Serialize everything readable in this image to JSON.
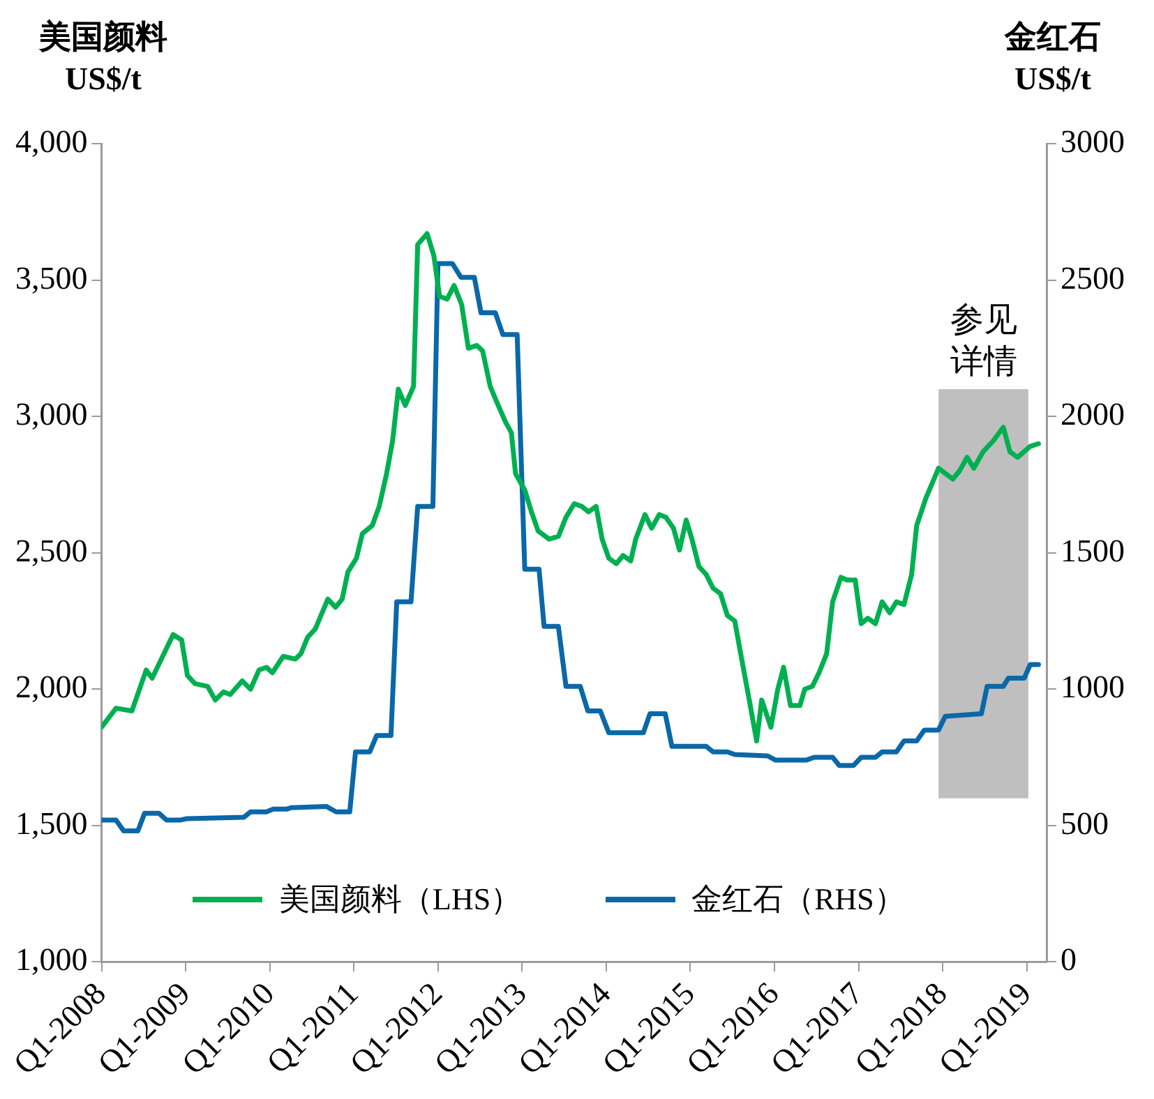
{
  "chart_data": {
    "type": "line",
    "ylabel": "美国颜料\nUS$/t",
    "y2label": "金红石\nUS$/t",
    "xlim": [
      "2008-01-01",
      "2019-03-28"
    ],
    "xticks": [
      {
        "value": "2008-01",
        "label": "Q1-2008"
      },
      {
        "value": "2009-01",
        "label": "Q1-2009"
      },
      {
        "value": "2010-01",
        "label": "Q1-2010"
      },
      {
        "value": "2011-01",
        "label": "Q1-2011"
      },
      {
        "value": "2012-01",
        "label": "Q1-2012"
      },
      {
        "value": "2013-01",
        "label": "Q1-2013"
      },
      {
        "value": "2014-01",
        "label": "Q1-2014"
      },
      {
        "value": "2015-01",
        "label": "Q1-2015"
      },
      {
        "value": "2016-01",
        "label": "Q1-2016"
      },
      {
        "value": "2017-01",
        "label": "Q1-2017"
      },
      {
        "value": "2018-01",
        "label": "Q1-2018"
      },
      {
        "value": "2019-01",
        "label": "Q1-2019"
      }
    ],
    "ylim": [
      1000,
      4000
    ],
    "yticks": [
      {
        "value": 1000,
        "label": "1,000"
      },
      {
        "value": 1500,
        "label": "1,500"
      },
      {
        "value": 2000,
        "label": "2,000"
      },
      {
        "value": 2500,
        "label": "2,500"
      },
      {
        "value": 3000,
        "label": "3,000"
      },
      {
        "value": 3500,
        "label": "3,500"
      },
      {
        "value": 4000,
        "label": "4,000"
      }
    ],
    "y2lim": [
      0,
      3000
    ],
    "y2ticks": [
      0,
      500,
      1000,
      1500,
      2000,
      2500,
      3000
    ],
    "grid": false,
    "legend": "bottom",
    "marker": "none",
    "bands": [
      {
        "axis": "x",
        "from": "2017-12-14",
        "to": "2019-01-08",
        "label": "参见详情",
        "color": "#bfbfbf"
      }
    ],
    "series": [
      {
        "name": "美国颜料（LHS）",
        "color": "#00b050",
        "x": [
          "2008-01-01",
          "2008-03-04",
          "2008-05-12",
          "2008-07-13",
          "2008-08-08",
          "2008-11-07",
          "2008-12-14",
          "2009-01-08",
          "2009-02-10",
          "2009-04-06",
          "2009-05-09",
          "2009-06-14",
          "2009-07-13",
          "2009-09-03",
          "2009-10-09",
          "2009-11-15",
          "2009-12-17",
          "2010-01-12",
          "2010-02-28",
          "2010-04-21",
          "2010-05-16",
          "2010-06-14",
          "2010-07-17",
          "2010-09-10",
          "2010-10-13",
          "2010-11-11",
          "2010-12-06",
          "2011-01-12",
          "2011-02-07",
          "2011-03-22",
          "2011-04-21",
          "2011-05-23",
          "2011-06-18",
          "2011-07-13",
          "2011-08-12",
          "2011-09-17",
          "2011-10-05",
          "2011-11-15",
          "2011-12-14",
          "2012-01-08",
          "2012-02-10",
          "2012-03-11",
          "2012-04-13",
          "2012-05-12",
          "2012-06-18",
          "2012-07-13",
          "2012-08-15",
          "2012-09-14",
          "2012-10-20",
          "2012-11-15",
          "2012-12-03",
          "2013-01-12",
          "2013-02-10",
          "2013-03-11",
          "2013-04-28",
          "2013-06-07",
          "2013-07-10",
          "2013-08-15",
          "2013-09-17",
          "2013-10-16",
          "2013-11-18",
          "2013-12-14",
          "2014-01-12",
          "2014-02-14",
          "2014-03-15",
          "2014-04-17",
          "2014-05-09",
          "2014-06-18",
          "2014-07-17",
          "2014-08-19",
          "2014-09-17",
          "2014-10-20",
          "2014-11-15",
          "2014-12-14",
          "2015-01-08",
          "2015-02-07",
          "2015-03-11",
          "2015-04-10",
          "2015-05-12",
          "2015-06-11",
          "2015-07-13",
          "2015-08-12",
          "2015-09-14",
          "2015-10-16",
          "2015-11-07",
          "2015-12-17",
          "2016-01-16",
          "2016-02-10",
          "2016-03-11",
          "2016-04-21",
          "2016-05-12",
          "2016-06-14",
          "2016-07-13",
          "2016-08-15",
          "2016-09-10",
          "2016-10-16",
          "2016-11-11",
          "2016-12-17",
          "2017-01-12",
          "2017-02-10",
          "2017-03-15",
          "2017-04-13",
          "2017-05-16",
          "2017-06-14",
          "2017-07-17",
          "2017-08-19",
          "2017-09-10",
          "2017-10-20",
          "2017-12-14",
          "2018-02-14",
          "2018-03-15",
          "2018-04-17",
          "2018-05-16",
          "2018-06-25",
          "2018-08-08",
          "2018-09-21",
          "2018-10-20",
          "2018-11-22",
          "2019-01-16",
          "2019-02-21"
        ],
        "values": [
          1860,
          1930,
          1920,
          2070,
          2040,
          2200,
          2180,
          2050,
          2020,
          2010,
          1960,
          1990,
          1980,
          2030,
          2000,
          2070,
          2080,
          2060,
          2120,
          2110,
          2130,
          2190,
          2220,
          2330,
          2300,
          2330,
          2430,
          2480,
          2570,
          2600,
          2670,
          2790,
          2910,
          3100,
          3040,
          3110,
          3630,
          3670,
          3590,
          3440,
          3430,
          3480,
          3410,
          3250,
          3260,
          3240,
          3110,
          3050,
          2980,
          2940,
          2790,
          2730,
          2650,
          2580,
          2550,
          2560,
          2630,
          2680,
          2670,
          2650,
          2670,
          2550,
          2480,
          2460,
          2490,
          2470,
          2550,
          2640,
          2590,
          2640,
          2630,
          2590,
          2510,
          2620,
          2550,
          2450,
          2420,
          2370,
          2350,
          2270,
          2250,
          2110,
          1960,
          1810,
          1960,
          1860,
          2000,
          2080,
          1940,
          1940,
          2000,
          2010,
          2060,
          2130,
          2320,
          2410,
          2400,
          2400,
          2240,
          2260,
          2240,
          2320,
          2280,
          2320,
          2310,
          2420,
          2600,
          2700,
          2810,
          2770,
          2800,
          2850,
          2810,
          2870,
          2910,
          2960,
          2870,
          2850,
          2890,
          2900
        ]
      },
      {
        "name": "金红石（RHS）",
        "color": "#0a68a8",
        "axis": "y2",
        "x": [
          "2008-01-01",
          "2008-03-04",
          "2008-04-06",
          "2008-06-07",
          "2008-07-06",
          "2008-09-06",
          "2008-10-09",
          "2008-12-10",
          "2009-01-05",
          "2009-09-10",
          "2009-10-09",
          "2009-12-17",
          "2010-01-16",
          "2010-03-15",
          "2010-04-02",
          "2010-09-03",
          "2010-10-16",
          "2010-12-14",
          "2011-01-08",
          "2011-03-11",
          "2011-04-10",
          "2011-06-11",
          "2011-07-06",
          "2011-09-06",
          "2011-10-05",
          "2011-12-10",
          "2012-01-01",
          "2012-03-04",
          "2012-04-10",
          "2012-06-07",
          "2012-07-06",
          "2012-09-06",
          "2012-10-09",
          "2012-12-10",
          "2013-01-12",
          "2013-03-15",
          "2013-04-06",
          "2013-06-07",
          "2013-07-10",
          "2013-09-10",
          "2013-10-13",
          "2013-12-06",
          "2014-01-12",
          "2014-06-11",
          "2014-07-10",
          "2014-09-14",
          "2014-10-13",
          "2015-03-11",
          "2015-04-10",
          "2015-06-11",
          "2015-07-13",
          "2015-12-03",
          "2016-01-05",
          "2016-05-20",
          "2016-06-22",
          "2016-09-10",
          "2016-10-09",
          "2016-12-10",
          "2017-01-12",
          "2017-03-15",
          "2017-04-13",
          "2017-06-14",
          "2017-07-17",
          "2017-09-10",
          "2017-10-13",
          "2017-12-14",
          "2018-01-12",
          "2018-06-18",
          "2018-07-13",
          "2018-09-21",
          "2018-10-13",
          "2018-12-21",
          "2019-01-16",
          "2019-02-21"
        ],
        "values": [
          520,
          520,
          480,
          480,
          545,
          545,
          520,
          520,
          525,
          530,
          550,
          550,
          560,
          560,
          565,
          570,
          550,
          550,
          770,
          770,
          830,
          830,
          1320,
          1320,
          1670,
          1670,
          2560,
          2560,
          2510,
          2510,
          2380,
          2380,
          2300,
          2300,
          1440,
          1440,
          1230,
          1230,
          1010,
          1010,
          920,
          920,
          840,
          840,
          910,
          910,
          790,
          790,
          770,
          770,
          760,
          755,
          740,
          740,
          750,
          750,
          720,
          720,
          750,
          750,
          770,
          770,
          810,
          810,
          850,
          850,
          900,
          910,
          1010,
          1010,
          1040,
          1040,
          1090,
          1090
        ]
      }
    ]
  }
}
